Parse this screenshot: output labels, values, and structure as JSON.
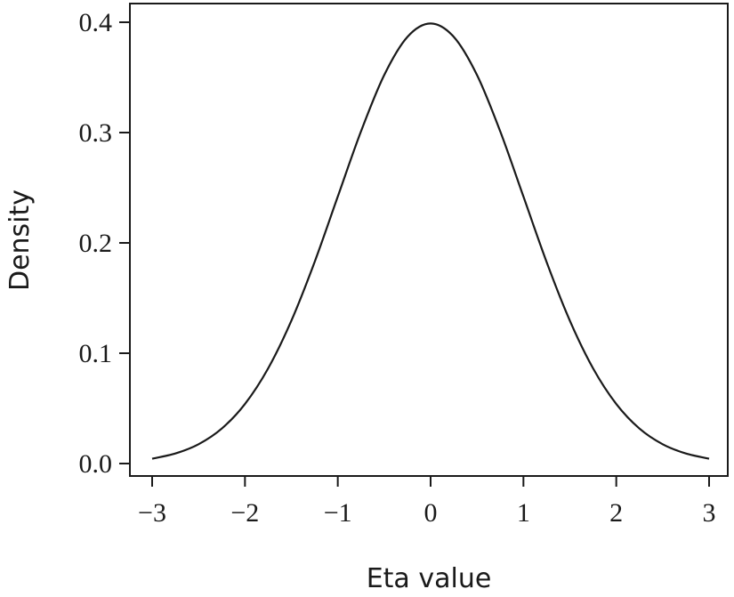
{
  "chart_data": {
    "type": "line",
    "title": "",
    "xlabel": "Eta value",
    "ylabel": "Density",
    "xlim": [
      -3,
      3
    ],
    "ylim": [
      0,
      0.4
    ],
    "x_ticks": [
      "−3",
      "−2",
      "−1",
      "0",
      "1",
      "2",
      "3"
    ],
    "x_tick_values": [
      -3,
      -2,
      -1,
      0,
      1,
      2,
      3
    ],
    "y_ticks": [
      "0.0",
      "0.1",
      "0.2",
      "0.3",
      "0.4"
    ],
    "y_tick_values": [
      0,
      0.1,
      0.2,
      0.3,
      0.4
    ],
    "grid": false,
    "series": [
      {
        "x": [
          -3,
          -2.75,
          -2.5,
          -2.25,
          -2,
          -1.75,
          -1.5,
          -1.25,
          -1,
          -0.75,
          -0.5,
          -0.25,
          0,
          0.25,
          0.5,
          0.75,
          1,
          1.25,
          1.5,
          1.75,
          2,
          2.25,
          2.5,
          2.75,
          3
        ],
        "y": [
          0.0044,
          0.0091,
          0.0175,
          0.0317,
          0.054,
          0.0863,
          0.1295,
          0.1826,
          0.242,
          0.3011,
          0.3521,
          0.3867,
          0.3989,
          0.3867,
          0.3521,
          0.3011,
          0.242,
          0.1826,
          0.1295,
          0.0863,
          0.054,
          0.0317,
          0.0175,
          0.0091,
          0.0044
        ]
      }
    ]
  }
}
